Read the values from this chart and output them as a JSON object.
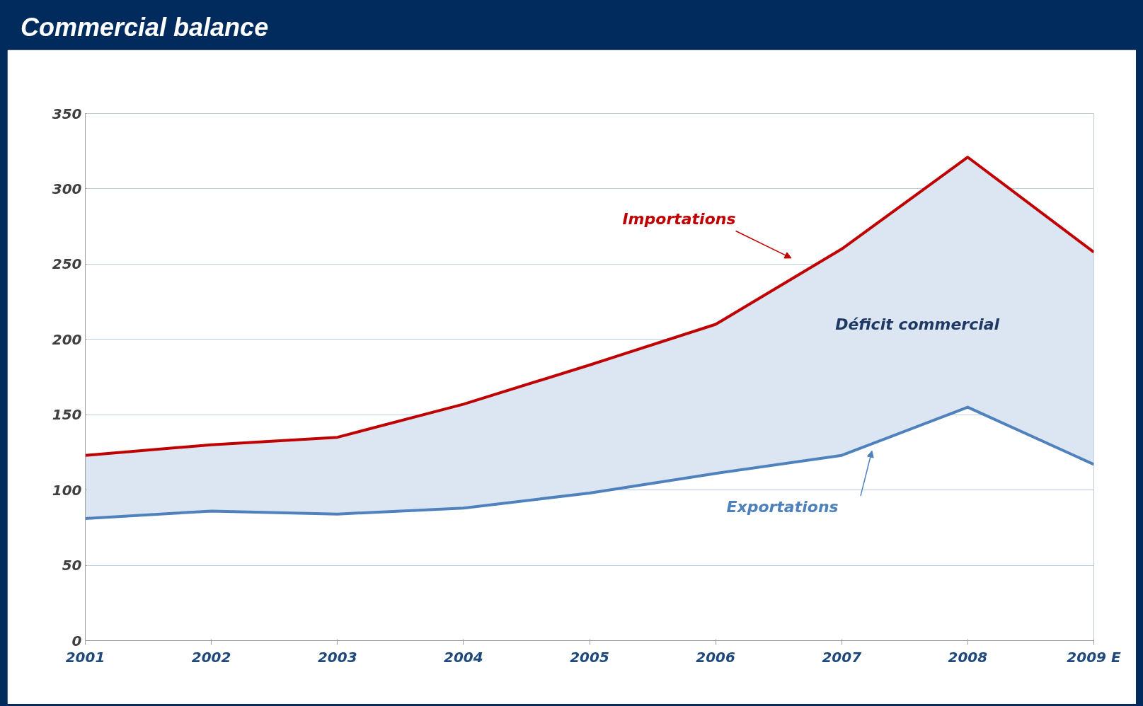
{
  "chart_data": {
    "type": "area",
    "title": "Commercial balance",
    "categories": [
      "2001",
      "2002",
      "2003",
      "2004",
      "2005",
      "2006",
      "2007",
      "2008",
      "2009 E"
    ],
    "series": [
      {
        "name": "Exportations",
        "type": "line",
        "color": "#4f81bd",
        "values": [
          81,
          86,
          84,
          88,
          98,
          111,
          123,
          155,
          117
        ]
      },
      {
        "name": "Importations",
        "color": "#c00000",
        "values": [
          123,
          130,
          135,
          157,
          183,
          210,
          260,
          321,
          258
        ]
      }
    ],
    "ylim": [
      0,
      350
    ],
    "yticks": [
      0,
      50,
      100,
      150,
      200,
      250,
      300,
      350
    ],
    "grid": "y",
    "annotations": [
      "Déficit commercial"
    ]
  }
}
